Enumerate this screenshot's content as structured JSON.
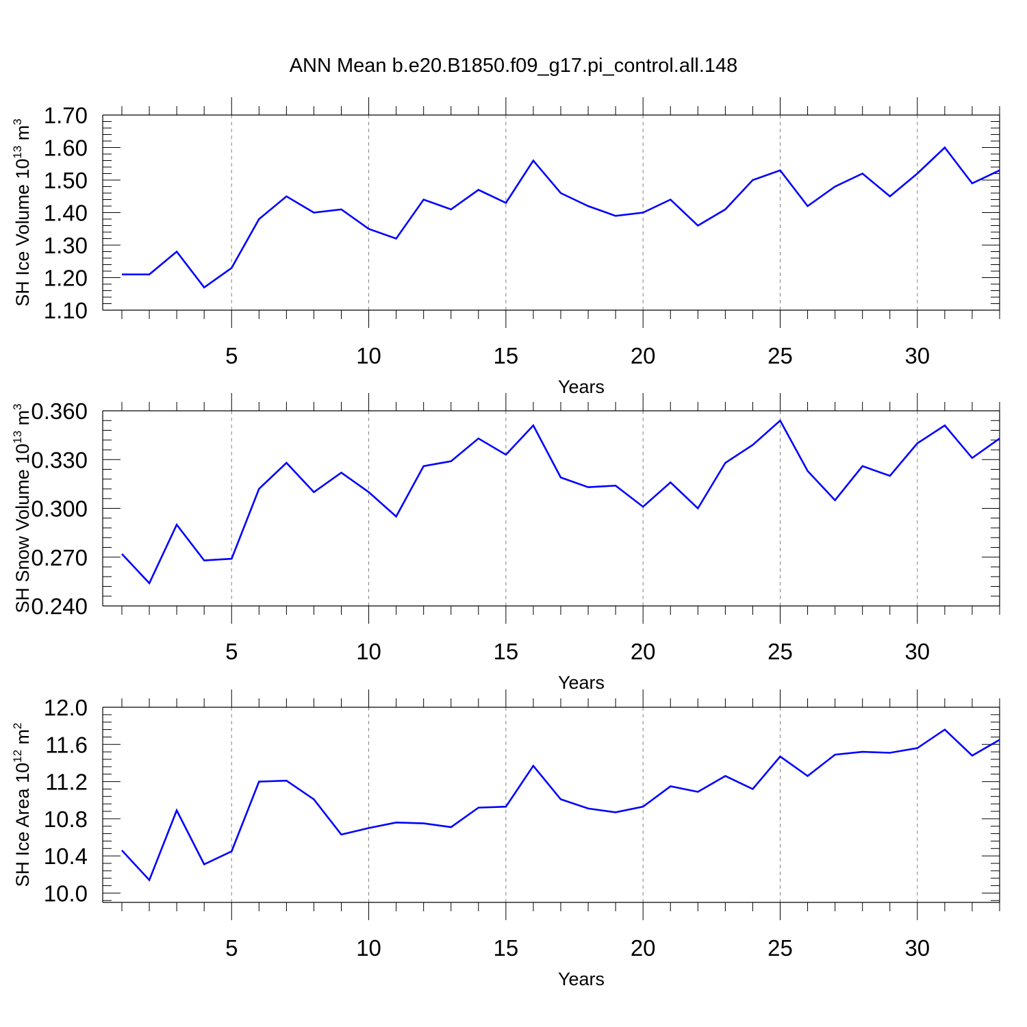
{
  "title": "ANN Mean b.e20.B1850.f09_g17.pi_control.all.148",
  "colors": {
    "line": "#0000ff",
    "axis": "#000000",
    "grid": "#808080"
  },
  "chart_data": [
    {
      "type": "line",
      "ylabel": {
        "main": "SH Ice Volume 10",
        "exp": "13",
        "unit": " m",
        "unit_exp": "3"
      },
      "xlabel": "Years",
      "xlim": [
        1,
        33
      ],
      "ylim": [
        1.1,
        1.7
      ],
      "x_ticks": [
        5,
        10,
        15,
        20,
        25,
        30
      ],
      "y_ticks": [
        "1.10",
        "1.20",
        "1.30",
        "1.40",
        "1.50",
        "1.60",
        "1.70"
      ],
      "grid": "vertical dashed at x ticks",
      "x": [
        1,
        2,
        3,
        4,
        5,
        6,
        7,
        8,
        9,
        10,
        11,
        12,
        13,
        14,
        15,
        16,
        17,
        18,
        19,
        20,
        21,
        22,
        23,
        24,
        25,
        26,
        27,
        28,
        29,
        30,
        31,
        32,
        33
      ],
      "series": [
        {
          "values": [
            1.21,
            1.21,
            1.28,
            1.17,
            1.23,
            1.38,
            1.45,
            1.4,
            1.41,
            1.35,
            1.32,
            1.44,
            1.41,
            1.47,
            1.43,
            1.56,
            1.46,
            1.42,
            1.39,
            1.4,
            1.44,
            1.36,
            1.41,
            1.5,
            1.53,
            1.42,
            1.48,
            1.52,
            1.45,
            1.52,
            1.6,
            1.49,
            1.53
          ]
        }
      ]
    },
    {
      "type": "line",
      "ylabel": {
        "main": "SH Snow Volume 10",
        "exp": "13",
        "unit": " m",
        "unit_exp": "3"
      },
      "xlabel": "Years",
      "xlim": [
        1,
        33
      ],
      "ylim": [
        0.24,
        0.36
      ],
      "x_ticks": [
        5,
        10,
        15,
        20,
        25,
        30
      ],
      "y_ticks": [
        "0.240",
        "0.270",
        "0.300",
        "0.330",
        "0.360"
      ],
      "grid": "vertical dashed at x ticks",
      "x": [
        1,
        2,
        3,
        4,
        5,
        6,
        7,
        8,
        9,
        10,
        11,
        12,
        13,
        14,
        15,
        16,
        17,
        18,
        19,
        20,
        21,
        22,
        23,
        24,
        25,
        26,
        27,
        28,
        29,
        30,
        31,
        32,
        33
      ],
      "series": [
        {
          "values": [
            0.272,
            0.254,
            0.29,
            0.268,
            0.269,
            0.312,
            0.328,
            0.31,
            0.322,
            0.31,
            0.295,
            0.326,
            0.329,
            0.343,
            0.333,
            0.351,
            0.319,
            0.313,
            0.314,
            0.301,
            0.316,
            0.3,
            0.328,
            0.339,
            0.354,
            0.323,
            0.305,
            0.326,
            0.32,
            0.34,
            0.351,
            0.331,
            0.343
          ]
        }
      ]
    },
    {
      "type": "line",
      "ylabel": {
        "main": "SH Ice Area 10",
        "exp": "12",
        "unit": " m",
        "unit_exp": "2"
      },
      "xlabel": "Years",
      "xlim": [
        1,
        33
      ],
      "ylim": [
        9.9,
        12.0
      ],
      "x_ticks": [
        5,
        10,
        15,
        20,
        25,
        30
      ],
      "y_ticks": [
        "10.0",
        "10.4",
        "10.8",
        "11.2",
        "11.6",
        "12.0"
      ],
      "grid": "vertical dashed at x ticks",
      "x": [
        1,
        2,
        3,
        4,
        5,
        6,
        7,
        8,
        9,
        10,
        11,
        12,
        13,
        14,
        15,
        16,
        17,
        18,
        19,
        20,
        21,
        22,
        23,
        24,
        25,
        26,
        27,
        28,
        29,
        30,
        31,
        32,
        33
      ],
      "series": [
        {
          "values": [
            10.46,
            10.14,
            10.89,
            10.31,
            10.45,
            11.2,
            11.21,
            11.01,
            10.63,
            10.7,
            10.76,
            10.75,
            10.71,
            10.92,
            10.93,
            11.37,
            11.01,
            10.91,
            10.87,
            10.93,
            11.15,
            11.09,
            11.26,
            11.12,
            11.47,
            11.26,
            11.49,
            11.52,
            11.51,
            11.56,
            11.76,
            11.48,
            11.65
          ]
        }
      ]
    }
  ]
}
